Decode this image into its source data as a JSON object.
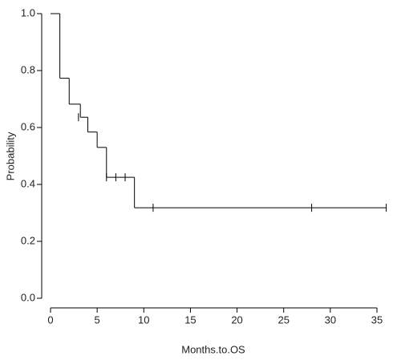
{
  "chart_data": {
    "type": "step",
    "x_label": "Months.to.OS",
    "y_label": "Probability",
    "series": [
      {
        "color": "#000000",
        "x": [
          0,
          1,
          2,
          3.2,
          4,
          5,
          6,
          9
        ],
        "values": [
          1,
          0.773,
          0.682,
          0.636,
          0.584,
          0.53,
          0.425,
          0.318
        ],
        "censored": {
          "x": [
            3,
            6,
            7,
            8,
            11,
            28,
            36
          ],
          "values": [
            0.636,
            0.425,
            0.425,
            0.425,
            0.318,
            0.318,
            0.318
          ]
        }
      }
    ],
    "xlim": [
      0,
      35
    ],
    "ylim": [
      0,
      1
    ],
    "xticks": [
      0,
      5,
      10,
      15,
      20,
      25,
      30,
      35
    ],
    "yticks": [
      {
        "value": 0,
        "label": "0.0"
      },
      {
        "value": 0.2,
        "label": "0.2"
      },
      {
        "value": 0.4,
        "label": "0.4"
      },
      {
        "value": 0.6,
        "label": "0.6"
      },
      {
        "value": 0.8,
        "label": "0.8"
      },
      {
        "value": 1,
        "label": "1.0"
      }
    ]
  }
}
